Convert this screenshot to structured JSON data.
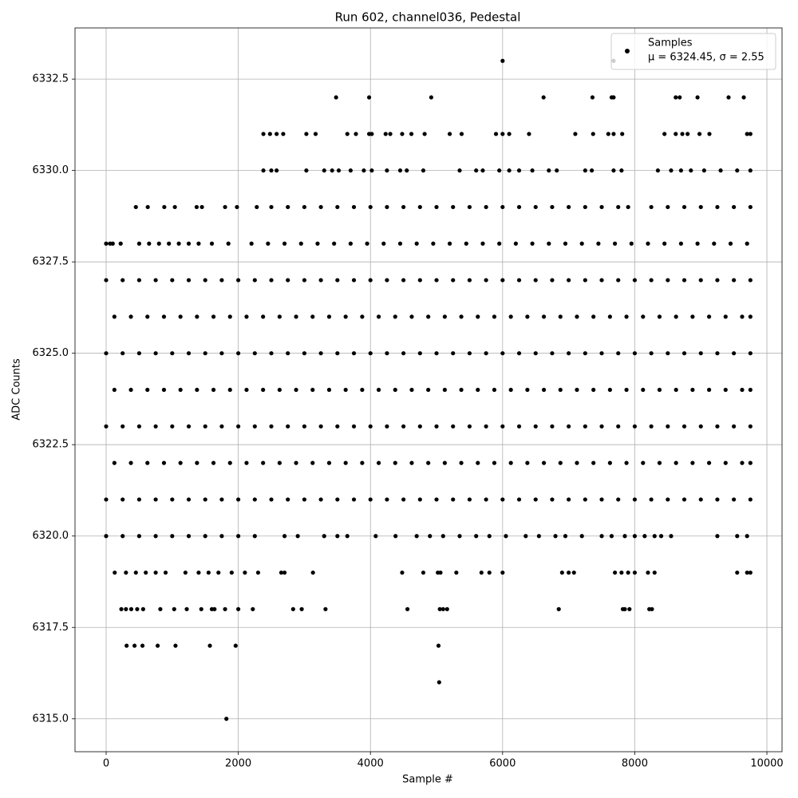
{
  "chart_data": {
    "type": "scatter",
    "title": "Run 602, channel036, Pedestal",
    "x_label": "Sample #",
    "y_label": "ADC Counts",
    "xlim": [
      -471,
      10229
    ],
    "ylim": [
      6314.1,
      6333.9
    ],
    "xticks": [
      0,
      2000,
      4000,
      6000,
      8000,
      10000
    ],
    "yticks": [
      {
        "value": 6315,
        "label": "6315.0"
      },
      6317.5,
      {
        "value": 6320,
        "label": "6320.0"
      },
      6322.5,
      {
        "value": 6325,
        "label": "6325.0"
      },
      6327.5,
      {
        "value": 6330,
        "label": "6330.0"
      },
      6332.5
    ],
    "grid": true,
    "legend": "upper right",
    "legend_stats": "μ = 6324.45, σ = 2.55",
    "x": [
      6000,
      7680,
      3480,
      3980,
      4920,
      6620,
      7360,
      7650,
      7680,
      8620,
      8680,
      8950,
      9420,
      9650,
      2380,
      2480,
      2580,
      2680,
      3030,
      3170,
      3650,
      3780,
      3980,
      4020,
      4230,
      4300,
      4480,
      4620,
      4820,
      5200,
      5380,
      5900,
      6000,
      6100,
      6400,
      7100,
      7370,
      7600,
      7680,
      7810,
      8450,
      8620,
      8720,
      8800,
      8980,
      9130,
      9700,
      9750,
      2380,
      2500,
      2580,
      3030,
      3300,
      3420,
      3520,
      3700,
      3900,
      4020,
      4250,
      4450,
      4550,
      4800,
      5350,
      5600,
      5700,
      5950,
      6100,
      6250,
      6450,
      6700,
      6820,
      7250,
      7350,
      7680,
      7800,
      8350,
      8550,
      8700,
      8850,
      9050,
      9300,
      9550,
      9750,
      450,
      630,
      880,
      1040,
      1370,
      1450,
      1800,
      1980,
      2280,
      2500,
      2750,
      3000,
      3250,
      3500,
      3750,
      4000,
      4250,
      4500,
      4750,
      5000,
      5250,
      5500,
      5750,
      6000,
      6250,
      6500,
      6750,
      7000,
      7250,
      7500,
      7750,
      7900,
      8250,
      8500,
      8750,
      9000,
      9250,
      9500,
      9750,
      0,
      60,
      100,
      220,
      500,
      650,
      800,
      950,
      1100,
      1250,
      1400,
      1600,
      1850,
      2200,
      2450,
      2700,
      2950,
      3200,
      3450,
      3700,
      3950,
      4200,
      4450,
      4700,
      4950,
      5200,
      5450,
      5700,
      5950,
      6200,
      6450,
      6700,
      6950,
      7200,
      7450,
      7700,
      7950,
      8200,
      8450,
      8700,
      8950,
      9200,
      9450,
      9700,
      0,
      250,
      500,
      750,
      1000,
      1250,
      1500,
      1750,
      2000,
      2250,
      2500,
      2750,
      3000,
      3250,
      3500,
      3750,
      4000,
      4250,
      4500,
      4750,
      5000,
      5250,
      5500,
      5750,
      6000,
      6250,
      6500,
      6750,
      7000,
      7250,
      7500,
      7750,
      8000,
      8250,
      8500,
      8750,
      9000,
      9250,
      9500,
      9750,
      125,
      375,
      625,
      875,
      1125,
      1375,
      1625,
      1875,
      2125,
      2375,
      2625,
      2875,
      3125,
      3375,
      3625,
      3875,
      4125,
      4375,
      4625,
      4875,
      5125,
      5375,
      5625,
      5875,
      6125,
      6375,
      6625,
      6875,
      7125,
      7375,
      7625,
      7875,
      8125,
      8375,
      8625,
      8875,
      9125,
      9375,
      9625,
      9750,
      0,
      250,
      500,
      750,
      1000,
      1250,
      1500,
      1750,
      2000,
      2250,
      2500,
      2750,
      3000,
      3250,
      3500,
      3750,
      4000,
      4250,
      4500,
      4750,
      5000,
      5250,
      5500,
      5750,
      6000,
      6250,
      6500,
      6750,
      7000,
      7250,
      7500,
      7750,
      8000,
      8250,
      8500,
      8750,
      9000,
      9250,
      9500,
      9750,
      125,
      375,
      625,
      875,
      1125,
      1375,
      1625,
      1875,
      2125,
      2375,
      2625,
      2875,
      3125,
      3375,
      3625,
      3875,
      4125,
      4375,
      4625,
      4875,
      5125,
      5375,
      5625,
      5875,
      6125,
      6375,
      6625,
      6875,
      7125,
      7375,
      7625,
      7875,
      8125,
      8375,
      8625,
      8875,
      9125,
      9375,
      9625,
      9750,
      0,
      250,
      500,
      750,
      1000,
      1250,
      1500,
      1750,
      2000,
      2250,
      2500,
      2750,
      3000,
      3250,
      3500,
      3750,
      4000,
      4250,
      4500,
      4750,
      5000,
      5250,
      5500,
      5750,
      6000,
      6250,
      6500,
      6750,
      7000,
      7250,
      7500,
      7750,
      8000,
      8250,
      8500,
      8750,
      9000,
      9250,
      9500,
      9750,
      125,
      375,
      625,
      875,
      1125,
      1375,
      1625,
      1875,
      2125,
      2375,
      2625,
      2875,
      3125,
      3375,
      3625,
      3875,
      4125,
      4375,
      4625,
      4875,
      5125,
      5375,
      5625,
      5875,
      6125,
      6375,
      6625,
      6875,
      7125,
      7375,
      7625,
      7875,
      8125,
      8375,
      8625,
      8875,
      9125,
      9375,
      9625,
      9750,
      0,
      250,
      500,
      750,
      1000,
      1250,
      1500,
      1750,
      2000,
      2250,
      2500,
      2750,
      3000,
      3250,
      3500,
      3750,
      4000,
      4250,
      4500,
      4750,
      5000,
      5250,
      5500,
      5750,
      6000,
      6250,
      6500,
      6750,
      7000,
      7250,
      7500,
      7750,
      8000,
      8250,
      8500,
      8750,
      9000,
      9250,
      9500,
      9750,
      0,
      250,
      500,
      750,
      1000,
      1250,
      1500,
      1750,
      2000,
      2250,
      2700,
      2900,
      3300,
      3500,
      3650,
      4080,
      4380,
      4700,
      4900,
      5100,
      5350,
      5600,
      5800,
      6050,
      6350,
      6550,
      6800,
      6950,
      7200,
      7500,
      7650,
      7850,
      8000,
      8150,
      8300,
      8400,
      8550,
      9250,
      9550,
      9700,
      130,
      300,
      450,
      600,
      750,
      900,
      1200,
      1400,
      1550,
      1700,
      1900,
      2100,
      2300,
      2650,
      2700,
      3130,
      4480,
      4800,
      5020,
      5060,
      5300,
      5680,
      5800,
      6000,
      6900,
      7000,
      7080,
      7700,
      7800,
      7900,
      8000,
      8200,
      8300,
      9550,
      9700,
      9750,
      230,
      300,
      380,
      470,
      560,
      820,
      1030,
      1220,
      1440,
      1600,
      1640,
      1800,
      2000,
      2220,
      2830,
      2960,
      3320,
      4560,
      5050,
      5100,
      5160,
      6850,
      7820,
      7850,
      7920,
      8220,
      8260,
      310,
      430,
      550,
      780,
      1050,
      1570,
      1960,
      5030,
      5040,
      1820
    ],
    "series": [
      {
        "name": "Samples",
        "color": "#000000",
        "values": [
          6333,
          6333,
          6332,
          6332,
          6332,
          6332,
          6332,
          6332,
          6332,
          6332,
          6332,
          6332,
          6332,
          6332,
          6331,
          6331,
          6331,
          6331,
          6331,
          6331,
          6331,
          6331,
          6331,
          6331,
          6331,
          6331,
          6331,
          6331,
          6331,
          6331,
          6331,
          6331,
          6331,
          6331,
          6331,
          6331,
          6331,
          6331,
          6331,
          6331,
          6331,
          6331,
          6331,
          6331,
          6331,
          6331,
          6331,
          6331,
          6330,
          6330,
          6330,
          6330,
          6330,
          6330,
          6330,
          6330,
          6330,
          6330,
          6330,
          6330,
          6330,
          6330,
          6330,
          6330,
          6330,
          6330,
          6330,
          6330,
          6330,
          6330,
          6330,
          6330,
          6330,
          6330,
          6330,
          6330,
          6330,
          6330,
          6330,
          6330,
          6330,
          6330,
          6330,
          6329,
          6329,
          6329,
          6329,
          6329,
          6329,
          6329,
          6329,
          6329,
          6329,
          6329,
          6329,
          6329,
          6329,
          6329,
          6329,
          6329,
          6329,
          6329,
          6329,
          6329,
          6329,
          6329,
          6329,
          6329,
          6329,
          6329,
          6329,
          6329,
          6329,
          6329,
          6329,
          6329,
          6329,
          6329,
          6329,
          6329,
          6329,
          6329,
          6328,
          6328,
          6328,
          6328,
          6328,
          6328,
          6328,
          6328,
          6328,
          6328,
          6328,
          6328,
          6328,
          6328,
          6328,
          6328,
          6328,
          6328,
          6328,
          6328,
          6328,
          6328,
          6328,
          6328,
          6328,
          6328,
          6328,
          6328,
          6328,
          6328,
          6328,
          6328,
          6328,
          6328,
          6328,
          6328,
          6328,
          6328,
          6328,
          6328,
          6328,
          6328,
          6328,
          6328,
          6327,
          6327,
          6327,
          6327,
          6327,
          6327,
          6327,
          6327,
          6327,
          6327,
          6327,
          6327,
          6327,
          6327,
          6327,
          6327,
          6327,
          6327,
          6327,
          6327,
          6327,
          6327,
          6327,
          6327,
          6327,
          6327,
          6327,
          6327,
          6327,
          6327,
          6327,
          6327,
          6327,
          6327,
          6327,
          6327,
          6327,
          6327,
          6327,
          6327,
          6326,
          6326,
          6326,
          6326,
          6326,
          6326,
          6326,
          6326,
          6326,
          6326,
          6326,
          6326,
          6326,
          6326,
          6326,
          6326,
          6326,
          6326,
          6326,
          6326,
          6326,
          6326,
          6326,
          6326,
          6326,
          6326,
          6326,
          6326,
          6326,
          6326,
          6326,
          6326,
          6326,
          6326,
          6326,
          6326,
          6326,
          6326,
          6326,
          6326,
          6325,
          6325,
          6325,
          6325,
          6325,
          6325,
          6325,
          6325,
          6325,
          6325,
          6325,
          6325,
          6325,
          6325,
          6325,
          6325,
          6325,
          6325,
          6325,
          6325,
          6325,
          6325,
          6325,
          6325,
          6325,
          6325,
          6325,
          6325,
          6325,
          6325,
          6325,
          6325,
          6325,
          6325,
          6325,
          6325,
          6325,
          6325,
          6325,
          6325,
          6324,
          6324,
          6324,
          6324,
          6324,
          6324,
          6324,
          6324,
          6324,
          6324,
          6324,
          6324,
          6324,
          6324,
          6324,
          6324,
          6324,
          6324,
          6324,
          6324,
          6324,
          6324,
          6324,
          6324,
          6324,
          6324,
          6324,
          6324,
          6324,
          6324,
          6324,
          6324,
          6324,
          6324,
          6324,
          6324,
          6324,
          6324,
          6324,
          6324,
          6323,
          6323,
          6323,
          6323,
          6323,
          6323,
          6323,
          6323,
          6323,
          6323,
          6323,
          6323,
          6323,
          6323,
          6323,
          6323,
          6323,
          6323,
          6323,
          6323,
          6323,
          6323,
          6323,
          6323,
          6323,
          6323,
          6323,
          6323,
          6323,
          6323,
          6323,
          6323,
          6323,
          6323,
          6323,
          6323,
          6323,
          6323,
          6323,
          6323,
          6322,
          6322,
          6322,
          6322,
          6322,
          6322,
          6322,
          6322,
          6322,
          6322,
          6322,
          6322,
          6322,
          6322,
          6322,
          6322,
          6322,
          6322,
          6322,
          6322,
          6322,
          6322,
          6322,
          6322,
          6322,
          6322,
          6322,
          6322,
          6322,
          6322,
          6322,
          6322,
          6322,
          6322,
          6322,
          6322,
          6322,
          6322,
          6322,
          6322,
          6321,
          6321,
          6321,
          6321,
          6321,
          6321,
          6321,
          6321,
          6321,
          6321,
          6321,
          6321,
          6321,
          6321,
          6321,
          6321,
          6321,
          6321,
          6321,
          6321,
          6321,
          6321,
          6321,
          6321,
          6321,
          6321,
          6321,
          6321,
          6321,
          6321,
          6321,
          6321,
          6321,
          6321,
          6321,
          6321,
          6321,
          6321,
          6321,
          6321,
          6320,
          6320,
          6320,
          6320,
          6320,
          6320,
          6320,
          6320,
          6320,
          6320,
          6320,
          6320,
          6320,
          6320,
          6320,
          6320,
          6320,
          6320,
          6320,
          6320,
          6320,
          6320,
          6320,
          6320,
          6320,
          6320,
          6320,
          6320,
          6320,
          6320,
          6320,
          6320,
          6320,
          6320,
          6320,
          6320,
          6320,
          6320,
          6320,
          6320,
          6319,
          6319,
          6319,
          6319,
          6319,
          6319,
          6319,
          6319,
          6319,
          6319,
          6319,
          6319,
          6319,
          6319,
          6319,
          6319,
          6319,
          6319,
          6319,
          6319,
          6319,
          6319,
          6319,
          6319,
          6319,
          6319,
          6319,
          6319,
          6319,
          6319,
          6319,
          6319,
          6319,
          6319,
          6319,
          6319,
          6318,
          6318,
          6318,
          6318,
          6318,
          6318,
          6318,
          6318,
          6318,
          6318,
          6318,
          6318,
          6318,
          6318,
          6318,
          6318,
          6318,
          6318,
          6318,
          6318,
          6318,
          6318,
          6318,
          6318,
          6318,
          6318,
          6318,
          6317,
          6317,
          6317,
          6317,
          6317,
          6317,
          6317,
          6317,
          6316,
          6315
        ]
      }
    ]
  }
}
